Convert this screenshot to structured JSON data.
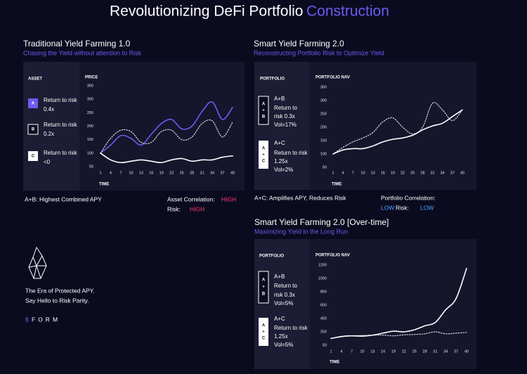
{
  "header": {
    "title": "Revolutionizing DeFi Portfolio",
    "title_accent": "Construction"
  },
  "sections": [
    {
      "title": "Traditional Yield Farming 1.0",
      "subtitle": "Chasing the Yield without attention to Risk",
      "legend_heading": "ASSET",
      "items": [
        {
          "badge": [
            "A"
          ],
          "lines": [
            "Return to risk",
            "0.4x"
          ]
        },
        {
          "badge": [
            "B"
          ],
          "lines": [
            "Return to risk",
            "0.2x"
          ]
        },
        {
          "badge": [
            "C"
          ],
          "lines": [
            "Return to risk",
            "<0"
          ]
        }
      ],
      "notes": [
        "A+B: Highest Combined APY",
        "Asset Correlation:",
        "HIGH",
        "Risk:",
        "HIGH"
      ]
    },
    {
      "title": "Smart Yield Farming 2.0",
      "subtitle": "Reconstructing Portfolio Risk to Optimize Yield",
      "legend_heading": "PORTFOLIO",
      "items": [
        {
          "badge": [
            "A",
            "+",
            "B"
          ],
          "lines": [
            "A+B",
            "Return to",
            "risk 0.3x",
            "Vol=17%"
          ]
        },
        {
          "badge": [
            "A",
            "+",
            "C"
          ],
          "lines": [
            "A+C",
            "Return to risk",
            "1.25x",
            "Vol=2%"
          ]
        }
      ],
      "notes": [
        "A+C: Amplifies APY,  Reduces Risk",
        "Portfolio Correlation:",
        "LOW",
        "Risk:",
        "LOW"
      ]
    },
    {
      "title": "Smart Yield Farming 2.0 [Over-time]",
      "subtitle": "Maximizing Yield in the Long Run",
      "legend_heading": "PORTFOLIO",
      "items": [
        {
          "badge": [
            "A",
            "+",
            "B"
          ],
          "lines": [
            "A+B",
            "Return to",
            "risk 0.3x",
            "Vol=5%"
          ]
        },
        {
          "badge": [
            "A",
            "+",
            "C"
          ],
          "lines": [
            "A+C",
            "Return to risk",
            "1.25x",
            "Vol=5%"
          ]
        }
      ]
    }
  ],
  "brand": {
    "tagline": [
      "The Era of Protected APY.",
      "Say Hello to Risk Parity."
    ],
    "symbol": "$",
    "name": "FORM"
  },
  "chart_data": [
    {
      "type": "line",
      "y_label": "PRICE",
      "x_label": "TIME",
      "x": [
        1,
        4,
        7,
        10,
        13,
        16,
        19,
        22,
        25,
        28,
        31,
        34,
        37,
        40
      ],
      "xlim": [
        1,
        40
      ],
      "xticks": [
        1,
        4,
        7,
        10,
        13,
        16,
        19,
        22,
        25,
        28,
        31,
        34,
        37,
        40
      ],
      "ylim": [
        50,
        350
      ],
      "yticks": [
        50,
        100,
        150,
        200,
        250,
        300,
        350
      ],
      "series": [
        {
          "color": "#6b5cf0",
          "style": "solid",
          "values": [
            100,
            130,
            165,
            155,
            130,
            170,
            210,
            225,
            190,
            200,
            255,
            290,
            225,
            270
          ]
        },
        {
          "color": "#d8d8e0",
          "style": "dotted",
          "values": [
            100,
            155,
            185,
            180,
            140,
            140,
            180,
            185,
            150,
            160,
            210,
            220,
            160,
            215
          ]
        },
        {
          "color": "#ffffff",
          "style": "solid",
          "values": [
            100,
            75,
            65,
            70,
            75,
            70,
            65,
            75,
            80,
            70,
            75,
            75,
            85,
            90
          ]
        }
      ]
    },
    {
      "type": "line",
      "y_label": "PORTFOLIO NAV",
      "x_label": "TIME",
      "x": [
        1,
        4,
        7,
        10,
        13,
        16,
        19,
        22,
        25,
        28,
        31,
        34,
        37,
        40
      ],
      "xlim": [
        1,
        40
      ],
      "xticks": [
        1,
        4,
        7,
        10,
        13,
        16,
        19,
        22,
        25,
        28,
        31,
        34,
        37,
        40
      ],
      "ylim": [
        50,
        350
      ],
      "yticks": [
        50,
        100,
        150,
        200,
        250,
        300,
        350
      ],
      "series": [
        {
          "color": "#d8d8e0",
          "style": "dotted",
          "values": [
            100,
            125,
            145,
            160,
            180,
            220,
            235,
            200,
            175,
            200,
            290,
            265,
            225,
            265
          ]
        },
        {
          "color": "#ffffff",
          "style": "solid",
          "values": [
            100,
            115,
            120,
            120,
            130,
            145,
            155,
            160,
            170,
            190,
            205,
            215,
            240,
            265
          ]
        }
      ]
    },
    {
      "type": "line",
      "y_label": "PORTFOLIO NAV",
      "x_label": "TIME",
      "x": [
        1,
        4,
        7,
        10,
        13,
        16,
        19,
        22,
        25,
        28,
        31,
        34,
        37,
        40
      ],
      "xlim": [
        1,
        40
      ],
      "xticks": [
        1,
        4,
        7,
        10,
        13,
        16,
        19,
        22,
        25,
        28,
        31,
        34,
        37,
        40
      ],
      "ylim": [
        50,
        1250
      ],
      "yticks": [
        50,
        250,
        450,
        650,
        850,
        1050,
        1250
      ],
      "series": [
        {
          "color": "#d8d8e0",
          "style": "dotted",
          "values": [
            150,
            175,
            190,
            195,
            200,
            200,
            190,
            205,
            210,
            220,
            250,
            220,
            230,
            240
          ]
        },
        {
          "color": "#ffffff",
          "style": "solid",
          "values": [
            150,
            180,
            190,
            185,
            200,
            230,
            260,
            250,
            280,
            340,
            390,
            580,
            750,
            1200
          ]
        }
      ]
    }
  ]
}
